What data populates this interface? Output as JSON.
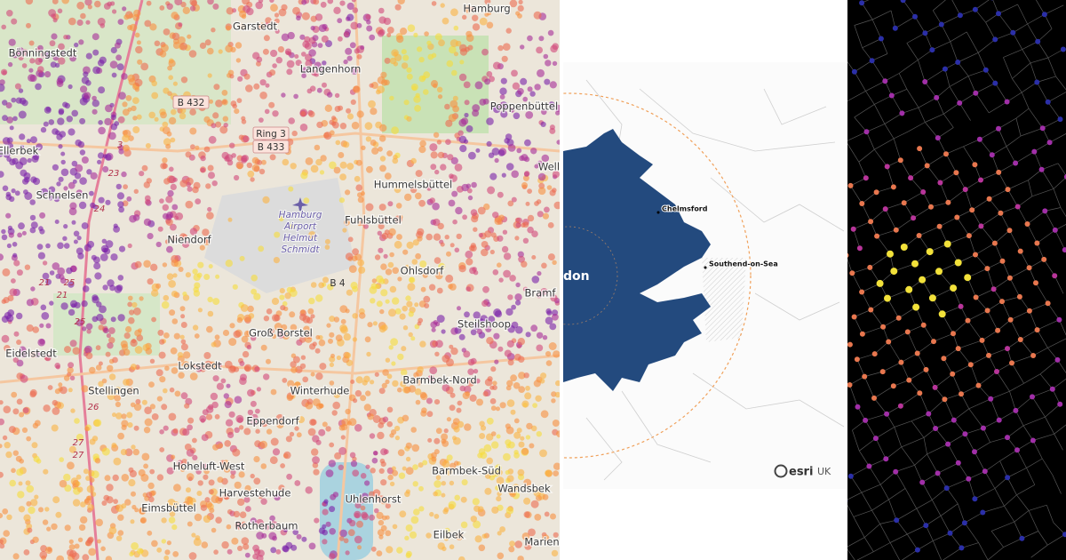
{
  "left_map": {
    "places": [
      "Garstedt",
      "Hamburg",
      "Bönningstedt",
      "Langenhorn",
      "Poppenbüttel",
      "Ellerbek",
      "Schnelsen",
      "Hummelsbüttel",
      "Well",
      "Fuhlsbüttel",
      "Niendorf",
      "Ohlsdorf",
      "Bramf",
      "Steilshoop",
      "Groß Borstel",
      "Eidelstedt",
      "Lokstedt",
      "Stellingen",
      "Barmbek-Nord",
      "Winterhude",
      "Eppendorf",
      "Hoheluft-West",
      "Harvestehude",
      "Uhlenhorst",
      "Barmbek-Süd",
      "Wandsbek",
      "Eimsbüttel",
      "Rotherbaum",
      "Eilbek",
      "Marien"
    ],
    "airport": [
      "Hamburg",
      "Airport",
      "Helmut",
      "Schmidt"
    ],
    "road_shields": [
      "B 432",
      "Ring 3",
      "B 433",
      "B 4"
    ],
    "road_numbers": [
      "3",
      "23",
      "24",
      "25",
      "21",
      "21",
      "25",
      "26",
      "27",
      "27"
    ]
  },
  "middle_map": {
    "places": [
      "Chelmsford",
      "Southend-on-Sea"
    ],
    "city": "don",
    "logo": {
      "brand": "esri",
      "region": "UK"
    }
  }
}
